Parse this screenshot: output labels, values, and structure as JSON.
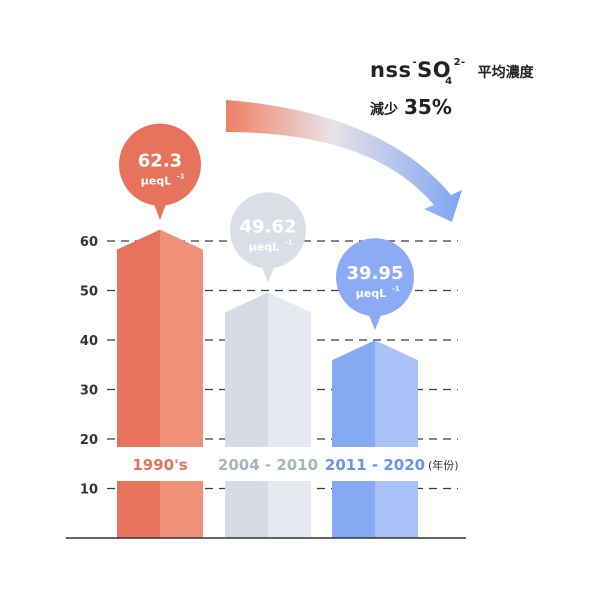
{
  "title": {
    "species_prefix": "nss",
    "species_minus": "-",
    "species_core": "SO",
    "species_charge": "2-",
    "species_subscript": "4",
    "metric_label": "平均濃度",
    "change_label": "減少",
    "change_value": "35%"
  },
  "colors": {
    "bar1_dark": "#e8735c",
    "bar1_light": "#ef9079",
    "bar2_dark": "#d6dbe5",
    "bar2_light": "#e6e9f0",
    "bar3_dark": "#86a9f4",
    "bar3_light": "#a8c1f8",
    "bubble1": "#e8735c",
    "bubble2": "#dadee6",
    "bubble3": "#8bacf5",
    "label1": "#e8735c",
    "label2": "#a9b3c6",
    "label3": "#6a94ee"
  },
  "chart_data": {
    "type": "bar",
    "categories": [
      "1990's",
      "2004 - 2010",
      "2011 - 2020"
    ],
    "x_unit_label": "(年份)",
    "values": [
      62.3,
      49.62,
      39.95
    ],
    "value_labels": [
      "62.3",
      "49.62",
      "39.95"
    ],
    "unit_label": "μeqL",
    "unit_exponent": "-1",
    "y_ticks": [
      "60",
      "50",
      "40",
      "30",
      "20",
      "10"
    ],
    "y_tick_values": [
      60,
      50,
      40,
      30,
      20,
      10
    ],
    "ylim": [
      0,
      70
    ],
    "grid": true,
    "grid_style": "dashed"
  }
}
